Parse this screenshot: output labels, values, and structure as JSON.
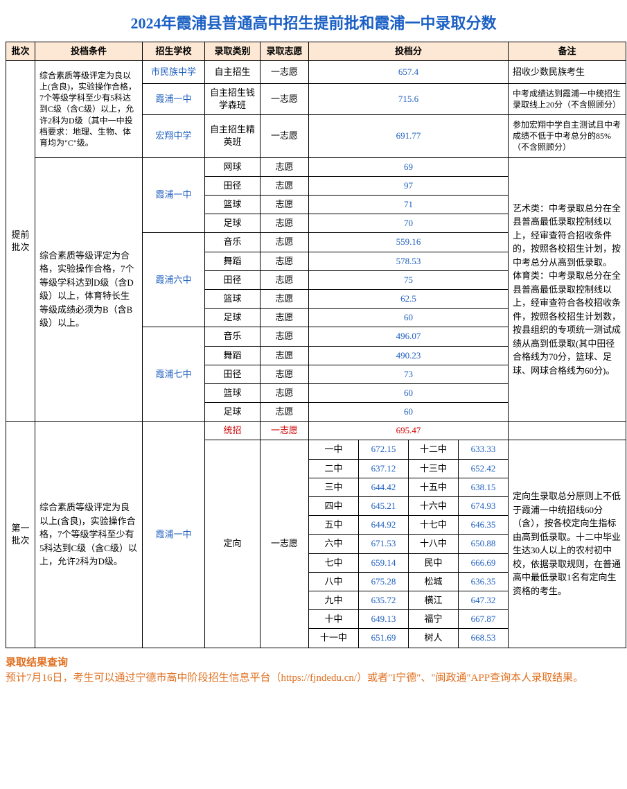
{
  "colors": {
    "title": "#1a5fc4",
    "header_bg": "#fde8d5",
    "score": "#2060c0",
    "link": "#2060c0",
    "red": "#d00000",
    "footer": "#e07020",
    "border": "#000000"
  },
  "title": "2024年霞浦县普通高中招生提前批和霞浦一中录取分数",
  "headers": {
    "batch": "批次",
    "condition": "投档条件",
    "school": "招生学校",
    "category": "录取类别",
    "wish": "录取志愿",
    "score": "投档分",
    "remark": "备注"
  },
  "batches": {
    "pre": "提前批次",
    "first": "第一批次"
  },
  "cond1": "综合素质等级评定为良以上(含良)，实验操作合格，7个等级学科至少有5科达到C级（含C级）以上，允许2科为D级（其中一中投档要求：地理、生物、体育均为\"C\"级。",
  "cond2": "综合素质等级评定为合格，实验操作合格，7个等级学科达到D级（含D级）以上，体育特长生等级成绩必须为B（含B级）以上。",
  "cond3": "综合素质等级评定为良以上(含良)，实验操作合格，7个等级学科至少有5科达到C级（含C级）以上，允许2科为D级。",
  "pre_rows": [
    {
      "school": "市民族中学",
      "cat": "自主招生",
      "wish": "一志愿",
      "score": "657.4",
      "remark": "招收少数民族考生"
    },
    {
      "school": "霞浦一中",
      "cat": "自主招生钱学森班",
      "wish": "一志愿",
      "score": "715.6",
      "remark": "中考成绩达到霞浦一中统招生录取线上20分（不含照顾分）"
    },
    {
      "school": "宏翔中学",
      "cat": "自主招生精英班",
      "wish": "一志愿",
      "score": "691.77",
      "remark": "参加宏翔中学自主测试且中考成绩不低于中考总分的85%（不含照顾分）"
    }
  ],
  "sports_remark": "艺术类：中考录取总分在全县普高最低录取控制线以上，经审查符合招收条件的，按照各校招生计划，按中考总分从高到低录取。\n体育类：中考录取总分在全县普高最低录取控制线以上，经审查符合各校招收条件，按照各校招生计划数，按县组织的专项统一测试成绩从高到低录取(其中田径合格线为70分，篮球、足球、网球合格线为60分)。",
  "sports_groups": [
    {
      "school": "霞浦一中",
      "rows": [
        {
          "cat": "网球",
          "wish": "志愿",
          "score": "69"
        },
        {
          "cat": "田径",
          "wish": "志愿",
          "score": "97"
        },
        {
          "cat": "篮球",
          "wish": "志愿",
          "score": "71"
        },
        {
          "cat": "足球",
          "wish": "志愿",
          "score": "70"
        }
      ]
    },
    {
      "school": "霞浦六中",
      "rows": [
        {
          "cat": "音乐",
          "wish": "志愿",
          "score": "559.16"
        },
        {
          "cat": "舞蹈",
          "wish": "志愿",
          "score": "578.53"
        },
        {
          "cat": "田径",
          "wish": "志愿",
          "score": "75"
        },
        {
          "cat": "篮球",
          "wish": "志愿",
          "score": "62.5"
        },
        {
          "cat": "足球",
          "wish": "志愿",
          "score": "60"
        }
      ]
    },
    {
      "school": "霞浦七中",
      "rows": [
        {
          "cat": "音乐",
          "wish": "志愿",
          "score": "496.07"
        },
        {
          "cat": "舞蹈",
          "wish": "志愿",
          "score": "490.23"
        },
        {
          "cat": "田径",
          "wish": "志愿",
          "score": "73"
        },
        {
          "cat": "篮球",
          "wish": "志愿",
          "score": "60"
        },
        {
          "cat": "足球",
          "wish": "志愿",
          "score": "60"
        }
      ]
    }
  ],
  "first_batch": {
    "school": "霞浦一中",
    "tongzhao": {
      "cat": "统招",
      "wish": "一志愿",
      "score": "695.47"
    },
    "dingxiang": {
      "cat": "定向",
      "wish": "一志愿"
    },
    "dingxiang_remark": "定向生录取总分原则上不低于霞浦一中统招线60分（含），按各校定向生指标由高到低录取。十二中毕业生达30人以上的农村初中校，依据录取规则，在普通高中最低录取1名有定向生资格的考生。",
    "dingxiang_scores": [
      {
        "l": "一中",
        "ls": "672.15",
        "r": "十二中",
        "rs": "633.33"
      },
      {
        "l": "二中",
        "ls": "637.12",
        "r": "十三中",
        "rs": "652.42"
      },
      {
        "l": "三中",
        "ls": "644.42",
        "r": "十五中",
        "rs": "638.15"
      },
      {
        "l": "四中",
        "ls": "645.21",
        "r": "十六中",
        "rs": "674.93"
      },
      {
        "l": "五中",
        "ls": "644.92",
        "r": "十七中",
        "rs": "646.35"
      },
      {
        "l": "六中",
        "ls": "671.53",
        "r": "十八中",
        "rs": "650.88"
      },
      {
        "l": "七中",
        "ls": "659.14",
        "r": "民中",
        "rs": "666.69"
      },
      {
        "l": "八中",
        "ls": "675.28",
        "r": "松城",
        "rs": "636.35"
      },
      {
        "l": "九中",
        "ls": "635.72",
        "r": "横江",
        "rs": "647.32"
      },
      {
        "l": "十中",
        "ls": "649.13",
        "r": "福宁",
        "rs": "667.87"
      },
      {
        "l": "十一中",
        "ls": "651.69",
        "r": "树人",
        "rs": "668.53"
      }
    ]
  },
  "footer": {
    "title": "录取结果查询",
    "body": "预计7月16日，考生可以通过宁德市高中阶段招生信息平台（https://fjndedu.cn/）或者\"I宁德\"、\"闽政通\"APP查询本人录取结果。"
  }
}
